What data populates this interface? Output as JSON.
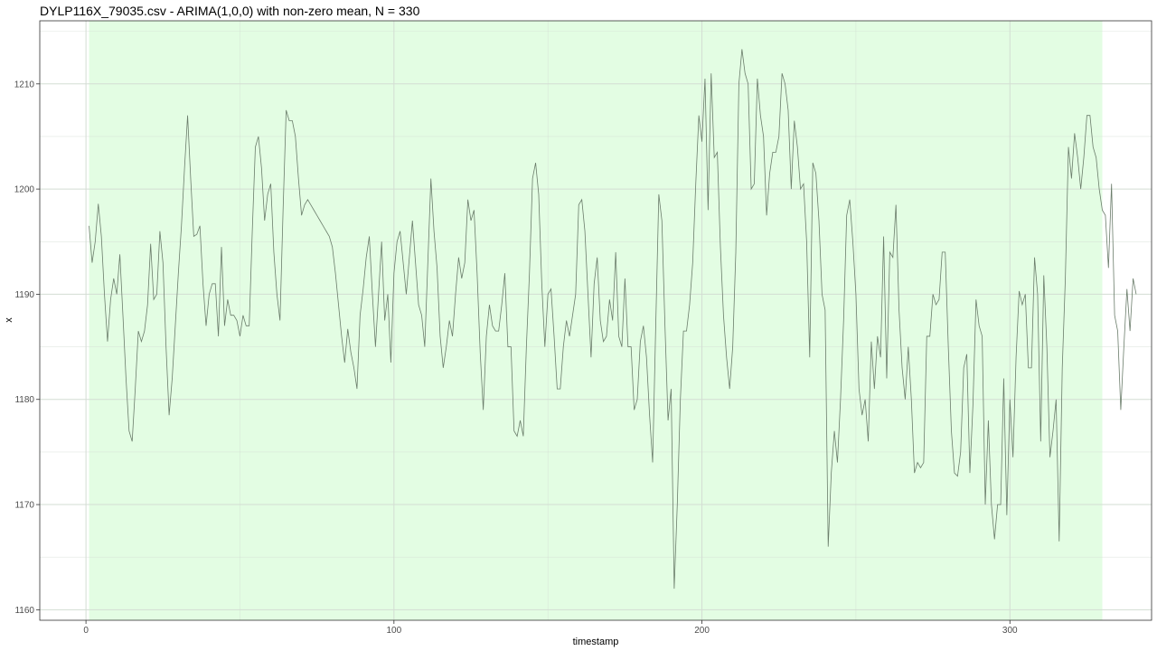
{
  "chart_data": {
    "type": "line",
    "title": "DYLP116X_79035.csv - ARIMA(1,0,0) with non-zero mean, N = 330",
    "xlabel": "timestamp",
    "ylabel": "x",
    "xlim": [
      -15,
      346
    ],
    "ylim": [
      1159,
      1216
    ],
    "x_ticks": [
      0,
      100,
      200,
      300
    ],
    "y_ticks": [
      1160,
      1170,
      1180,
      1190,
      1200,
      1210
    ],
    "grid": true,
    "legend": "none",
    "background_band": {
      "x_start": 1,
      "x_end": 330,
      "color": "#e3fde3"
    },
    "colors": {
      "line": "#6b7d6b",
      "grid": "#d3ddd3",
      "panel_border": "#333333"
    },
    "series": [
      {
        "values": [
          1196.5,
          1193.0,
          1195.0,
          1198.6,
          1195.5,
          1190.0,
          1185.5,
          1189.5,
          1191.5,
          1190.0,
          1193.8,
          1188.0,
          1182.0,
          1177.0,
          1176.0,
          1181.0,
          1186.5,
          1185.5,
          1186.5,
          1189.0,
          1194.8,
          1189.5,
          1190.0,
          1196.0,
          1193.0,
          1185.0,
          1178.5,
          1182.0,
          1187.0,
          1192.0,
          1196.5,
          1202.0,
          1207.0,
          1201.0,
          1195.5,
          1195.7,
          1196.5,
          1191.0,
          1187.0,
          1190.0,
          1191.0,
          1191.0,
          1186.0,
          1194.5,
          1187.0,
          1189.5,
          1188.0,
          1188.0,
          1187.5,
          1186.0,
          1188.0,
          1187.0,
          1187.0,
          1196.0,
          1204.0,
          1205.0,
          1202.0,
          1197.0,
          1199.5,
          1200.5,
          1194.0,
          1190.0,
          1187.5,
          1198.0,
          1207.5,
          1206.5,
          1206.5,
          1205.0,
          1201.0,
          1197.5,
          1198.5,
          1199.0,
          1198.5,
          1198.0,
          1197.5,
          1197.0,
          1196.5,
          1196.0,
          1195.5,
          1194.5,
          1192.0,
          1189.0,
          1186.0,
          1183.5,
          1186.7,
          1184.5,
          1183.0,
          1181.0,
          1188.0,
          1190.5,
          1193.5,
          1195.5,
          1190.0,
          1185.0,
          1190.0,
          1195.0,
          1187.5,
          1190.0,
          1183.5,
          1192.0,
          1195.0,
          1196.0,
          1193.0,
          1190.0,
          1193.5,
          1197.0,
          1193.0,
          1189.0,
          1188.0,
          1185.0,
          1193.0,
          1201.0,
          1196.0,
          1192.5,
          1186.0,
          1183.0,
          1185.0,
          1187.5,
          1186.0,
          1190.0,
          1193.5,
          1191.5,
          1193.0,
          1199.0,
          1197.0,
          1198.0,
          1192.0,
          1184.5,
          1179.0,
          1186.0,
          1189.0,
          1187.0,
          1186.5,
          1186.5,
          1189.0,
          1192.0,
          1185.0,
          1185.0,
          1177.0,
          1176.5,
          1178.0,
          1176.5,
          1185.0,
          1192.0,
          1201.0,
          1202.5,
          1199.5,
          1191.0,
          1185.0,
          1190.0,
          1190.5,
          1186.0,
          1181.0,
          1181.0,
          1185.0,
          1187.5,
          1186.0,
          1188.0,
          1190.0,
          1198.5,
          1199.0,
          1196.0,
          1190.0,
          1184.0,
          1191.0,
          1193.5,
          1187.5,
          1185.5,
          1186.0,
          1189.5,
          1187.5,
          1194.0,
          1186.0,
          1185.0,
          1191.5,
          1185.0,
          1185.0,
          1179.0,
          1180.0,
          1185.5,
          1187.0,
          1184.0,
          1178.5,
          1174.0,
          1187.0,
          1199.5,
          1197.0,
          1187.0,
          1178.0,
          1181.0,
          1162.0,
          1170.0,
          1180.0,
          1186.5,
          1186.5,
          1189.0,
          1193.0,
          1200.5,
          1207.0,
          1204.5,
          1210.5,
          1198.0,
          1211.0,
          1203.0,
          1203.5,
          1194.5,
          1188.0,
          1184.0,
          1181.0,
          1185.0,
          1194.0,
          1210.0,
          1213.3,
          1211.0,
          1210.0,
          1200.0,
          1200.5,
          1210.5,
          1207.0,
          1205.0,
          1197.5,
          1201.5,
          1203.5,
          1203.5,
          1205.0,
          1211.0,
          1210.0,
          1207.5,
          1200.0,
          1206.5,
          1204.0,
          1200.0,
          1200.5,
          1195.0,
          1184.0,
          1202.5,
          1201.5,
          1197.0,
          1190.0,
          1188.5,
          1166.0,
          1173.0,
          1177.0,
          1174.0,
          1180.0,
          1187.5,
          1197.5,
          1199.0,
          1195.0,
          1190.0,
          1181.0,
          1178.5,
          1180.0,
          1176.0,
          1185.5,
          1181.0,
          1186.0,
          1184.0,
          1195.5,
          1182.0,
          1194.0,
          1193.5,
          1198.5,
          1188.5,
          1183.0,
          1180.0,
          1185.0,
          1180.0,
          1173.0,
          1174.0,
          1173.5,
          1174.0,
          1186.0,
          1186.0,
          1190.0,
          1189.0,
          1189.5,
          1194.0,
          1194.0,
          1185.0,
          1177.0,
          1173.0,
          1172.7,
          1175.0,
          1183.0,
          1184.3,
          1173.0,
          1179.5,
          1189.5,
          1187.0,
          1186.0,
          1170.0,
          1178.0,
          1170.0,
          1166.7,
          1170.0,
          1170.0,
          1182.0,
          1169.0,
          1180.0,
          1174.5,
          1184.0,
          1190.3,
          1189.0,
          1190.0,
          1183.0,
          1183.0,
          1193.5,
          1190.0,
          1176.0,
          1191.8,
          1185.0,
          1174.5,
          1177.0,
          1180.0,
          1166.5,
          1183.0,
          1191.5,
          1204.0,
          1201.0,
          1205.3,
          1203.0,
          1200.0,
          1203.0,
          1207.0,
          1207.0,
          1204.0,
          1203.0,
          1200.0,
          1198.0,
          1197.5,
          1192.5,
          1200.5,
          1188.0,
          1186.5,
          1179.0,
          1185.0,
          1190.5,
          1186.5,
          1191.5,
          1190.0
        ]
      }
    ]
  }
}
